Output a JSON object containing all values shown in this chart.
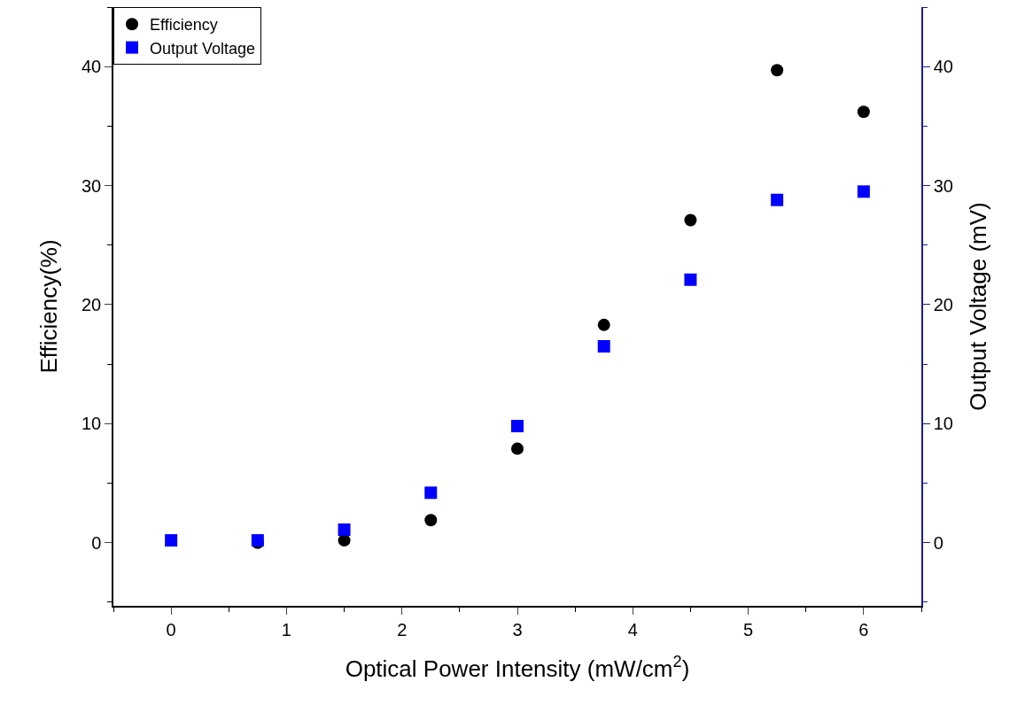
{
  "chart_data": {
    "type": "scatter",
    "xlabel": "Optical Power Intensity (mW/cm$^{2}$)",
    "ylabel": "Efficiency(%)",
    "y2label": "Output Voltage (mV)",
    "x": [
      0,
      0.75,
      1.5,
      2.25,
      3,
      3.75,
      4.5,
      5.25,
      6
    ],
    "series": [
      {
        "name": "Efficiency",
        "color": "#000000",
        "marker": "circle",
        "values": [
          null,
          0,
          0.2,
          1.9,
          7.9,
          18.3,
          27.1,
          39.7,
          36.2
        ]
      },
      {
        "name": "Output Voltage",
        "color": "#0000ff",
        "marker": "square",
        "axis": "y2",
        "values": [
          0.2,
          0.2,
          1.1,
          4.2,
          9.8,
          16.5,
          22.1,
          28.8,
          29.5
        ]
      }
    ],
    "xlim": [
      -0.5,
      6.5
    ],
    "xticks": [
      0,
      1,
      2,
      3,
      4,
      5,
      6
    ],
    "ylim": [
      -5.3,
      45
    ],
    "yticks": [
      0,
      10,
      20,
      30,
      40
    ],
    "y2lim": [
      -5.3,
      45
    ],
    "y2ticks": [
      0,
      10,
      20,
      30,
      40
    ],
    "legend": "top left"
  }
}
